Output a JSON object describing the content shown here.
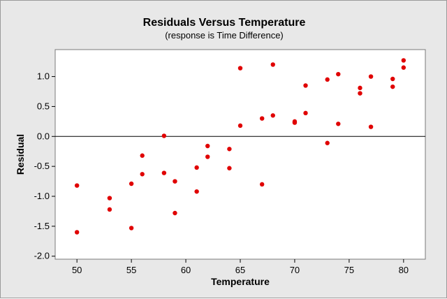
{
  "chart_data": {
    "type": "scatter",
    "title": "Residuals Versus Temperature",
    "subtitle": "(response is Time Difference)",
    "xlabel": "Temperature",
    "ylabel": "Residual",
    "xlim": [
      48,
      82
    ],
    "ylim": [
      -2.05,
      1.45
    ],
    "xticks": [
      50,
      55,
      60,
      65,
      70,
      75,
      80
    ],
    "yticks": [
      1.0,
      0.5,
      0.0,
      -0.5,
      -1.0,
      -1.5,
      -2.0
    ],
    "xtick_labels": [
      "50",
      "55",
      "60",
      "65",
      "70",
      "75",
      "80"
    ],
    "ytick_labels": [
      "1.0",
      "0.5",
      "0.0",
      "-0.5",
      "-1.0",
      "-1.5",
      "-2.0"
    ],
    "reference_line_y": 0,
    "grid": false,
    "point_color": "#e00000",
    "points": [
      {
        "x": 50,
        "y": -0.82
      },
      {
        "x": 50,
        "y": -1.6
      },
      {
        "x": 53,
        "y": -1.03
      },
      {
        "x": 53,
        "y": -1.22
      },
      {
        "x": 55,
        "y": -0.79
      },
      {
        "x": 55,
        "y": -1.53
      },
      {
        "x": 56,
        "y": -0.32
      },
      {
        "x": 56,
        "y": -0.63
      },
      {
        "x": 58,
        "y": 0.01
      },
      {
        "x": 58,
        "y": -0.61
      },
      {
        "x": 59,
        "y": -0.75
      },
      {
        "x": 59,
        "y": -1.28
      },
      {
        "x": 61,
        "y": -0.52
      },
      {
        "x": 61,
        "y": -0.92
      },
      {
        "x": 62,
        "y": -0.16
      },
      {
        "x": 62,
        "y": -0.34
      },
      {
        "x": 64,
        "y": -0.21
      },
      {
        "x": 64,
        "y": -0.53
      },
      {
        "x": 65,
        "y": 1.14
      },
      {
        "x": 65,
        "y": 0.18
      },
      {
        "x": 67,
        "y": 0.3
      },
      {
        "x": 67,
        "y": -0.8
      },
      {
        "x": 68,
        "y": 1.2
      },
      {
        "x": 68,
        "y": 0.35
      },
      {
        "x": 70,
        "y": 0.25
      },
      {
        "x": 70,
        "y": 0.23
      },
      {
        "x": 71,
        "y": 0.85
      },
      {
        "x": 71,
        "y": 0.39
      },
      {
        "x": 73,
        "y": 0.95
      },
      {
        "x": 73,
        "y": -0.11
      },
      {
        "x": 74,
        "y": 1.04
      },
      {
        "x": 74,
        "y": 0.21
      },
      {
        "x": 76,
        "y": 0.81
      },
      {
        "x": 76,
        "y": 0.72
      },
      {
        "x": 77,
        "y": 1.0
      },
      {
        "x": 77,
        "y": 0.16
      },
      {
        "x": 79,
        "y": 0.96
      },
      {
        "x": 79,
        "y": 0.83
      },
      {
        "x": 80,
        "y": 1.27
      },
      {
        "x": 80,
        "y": 1.15
      }
    ]
  }
}
